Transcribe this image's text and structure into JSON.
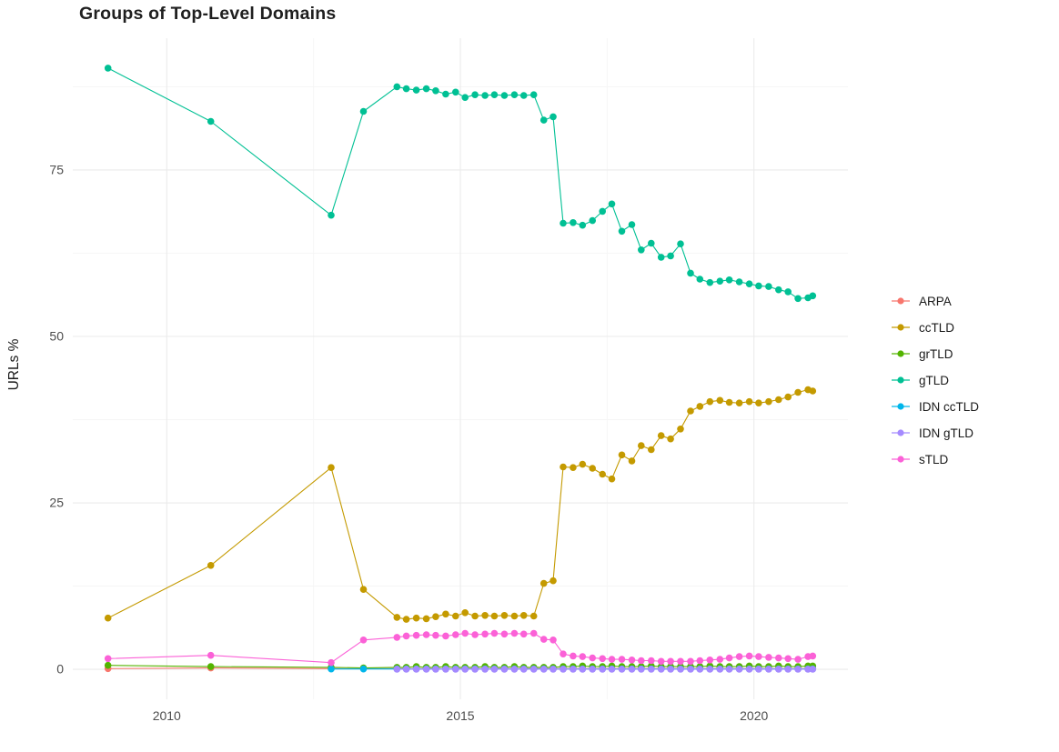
{
  "chart_data": {
    "type": "line",
    "title": "Groups of Top-Level Domains",
    "xlabel": "",
    "ylabel": "URLs %",
    "xlim": [
      2008.4,
      2021.6
    ],
    "ylim": [
      -4.5,
      94.8
    ],
    "xticks": [
      2010,
      2015,
      2020
    ],
    "yticks": [
      0,
      25,
      50,
      75
    ],
    "xticks_minor": [
      2012.5,
      2017.5
    ],
    "yticks_minor": [
      12.5,
      37.5,
      62.5,
      87.5
    ],
    "grid": true,
    "legend_position": "right",
    "style": {
      "background": "#ffffff",
      "grid_major": "#ebebeb",
      "grid_minor": "#f6f6f6",
      "axis_text": "#4d4d4d",
      "title_color": "#1f1f1f",
      "point_radius": 3.8,
      "line_width": 1.1
    },
    "series": [
      {
        "name": "ARPA",
        "color": "#F8766D",
        "x": [
          2009.0,
          2010.75,
          2012.8,
          2013.35,
          2013.92,
          2014.08,
          2014.25,
          2014.42,
          2014.58,
          2014.75,
          2014.92,
          2015.08,
          2015.25,
          2015.42,
          2015.58,
          2015.75,
          2015.92,
          2016.08,
          2016.25,
          2016.42,
          2016.58,
          2016.75,
          2016.92,
          2017.08,
          2017.25,
          2017.42,
          2017.58,
          2017.75,
          2017.92,
          2018.08,
          2018.25,
          2018.42,
          2018.58,
          2018.75,
          2018.92,
          2019.08,
          2019.25,
          2019.42,
          2019.58,
          2019.75,
          2019.92,
          2020.08,
          2020.25,
          2020.42,
          2020.58,
          2020.75,
          2020.92,
          2021.0
        ],
        "y": [
          0.1,
          0.2,
          0.1,
          0.1,
          0.1,
          0.1,
          0.1,
          0.1,
          0.1,
          0.1,
          0.1,
          0.1,
          0.1,
          0.1,
          0.1,
          0.1,
          0.1,
          0.1,
          0.1,
          0.1,
          0.1,
          0.1,
          0.1,
          0.1,
          0.1,
          0.1,
          0.1,
          0.1,
          0.1,
          0.1,
          0.1,
          0.1,
          0.1,
          0.1,
          0.1,
          0.1,
          0.1,
          0.1,
          0.1,
          0.1,
          0.1,
          0.1,
          0.1,
          0.1,
          0.1,
          0.1,
          0.1,
          0.1
        ]
      },
      {
        "name": "ccTLD",
        "color": "#C49A00",
        "x": [
          2009.0,
          2010.75,
          2012.8,
          2013.35,
          2013.92,
          2014.08,
          2014.25,
          2014.42,
          2014.58,
          2014.75,
          2014.92,
          2015.08,
          2015.25,
          2015.42,
          2015.58,
          2015.75,
          2015.92,
          2016.08,
          2016.25,
          2016.42,
          2016.58,
          2016.75,
          2016.92,
          2017.08,
          2017.25,
          2017.42,
          2017.58,
          2017.75,
          2017.92,
          2018.08,
          2018.25,
          2018.42,
          2018.58,
          2018.75,
          2018.92,
          2019.08,
          2019.25,
          2019.42,
          2019.58,
          2019.75,
          2019.92,
          2020.08,
          2020.25,
          2020.42,
          2020.58,
          2020.75,
          2020.92,
          2021.0
        ],
        "y": [
          7.7,
          15.6,
          30.3,
          12.0,
          7.8,
          7.5,
          7.7,
          7.6,
          7.9,
          8.3,
          8.0,
          8.5,
          8.0,
          8.1,
          8.0,
          8.1,
          8.0,
          8.1,
          8.0,
          12.9,
          13.3,
          30.4,
          30.3,
          30.8,
          30.2,
          29.3,
          28.6,
          32.2,
          31.3,
          33.6,
          33.0,
          35.1,
          34.6,
          36.1,
          38.8,
          39.5,
          40.2,
          40.4,
          40.1,
          40.0,
          40.2,
          40.0,
          40.2,
          40.5,
          40.9,
          41.6,
          42.0,
          41.8
        ]
      },
      {
        "name": "grTLD",
        "color": "#53B400",
        "x": [
          2009.0,
          2010.75,
          2012.8,
          2013.35,
          2013.92,
          2014.08,
          2014.25,
          2014.42,
          2014.58,
          2014.75,
          2014.92,
          2015.08,
          2015.25,
          2015.42,
          2015.58,
          2015.75,
          2015.92,
          2016.08,
          2016.25,
          2016.42,
          2016.58,
          2016.75,
          2016.92,
          2017.08,
          2017.25,
          2017.42,
          2017.58,
          2017.75,
          2017.92,
          2018.08,
          2018.25,
          2018.42,
          2018.58,
          2018.75,
          2018.92,
          2019.08,
          2019.25,
          2019.42,
          2019.58,
          2019.75,
          2019.92,
          2020.08,
          2020.25,
          2020.42,
          2020.58,
          2020.75,
          2020.92,
          2021.0
        ],
        "y": [
          0.6,
          0.4,
          0.3,
          0.2,
          0.3,
          0.3,
          0.4,
          0.3,
          0.3,
          0.4,
          0.3,
          0.3,
          0.3,
          0.4,
          0.3,
          0.3,
          0.4,
          0.3,
          0.3,
          0.3,
          0.3,
          0.4,
          0.4,
          0.5,
          0.4,
          0.4,
          0.5,
          0.4,
          0.4,
          0.4,
          0.5,
          0.4,
          0.4,
          0.4,
          0.4,
          0.4,
          0.5,
          0.4,
          0.4,
          0.4,
          0.5,
          0.4,
          0.4,
          0.5,
          0.4,
          0.4,
          0.5,
          0.5
        ]
      },
      {
        "name": "gTLD",
        "color": "#00C094",
        "x": [
          2009.0,
          2010.75,
          2012.8,
          2013.35,
          2013.92,
          2014.08,
          2014.25,
          2014.42,
          2014.58,
          2014.75,
          2014.92,
          2015.08,
          2015.25,
          2015.42,
          2015.58,
          2015.75,
          2015.92,
          2016.08,
          2016.25,
          2016.42,
          2016.58,
          2016.75,
          2016.92,
          2017.08,
          2017.25,
          2017.42,
          2017.58,
          2017.75,
          2017.92,
          2018.08,
          2018.25,
          2018.42,
          2018.58,
          2018.75,
          2018.92,
          2019.08,
          2019.25,
          2019.42,
          2019.58,
          2019.75,
          2019.92,
          2020.08,
          2020.25,
          2020.42,
          2020.58,
          2020.75,
          2020.92,
          2021.0
        ],
        "y": [
          90.3,
          82.3,
          68.2,
          83.8,
          87.5,
          87.2,
          87.0,
          87.2,
          86.9,
          86.4,
          86.7,
          85.9,
          86.3,
          86.2,
          86.3,
          86.2,
          86.3,
          86.2,
          86.3,
          82.5,
          83.0,
          67.0,
          67.1,
          66.7,
          67.4,
          68.8,
          69.9,
          65.8,
          66.8,
          63.0,
          64.0,
          61.9,
          62.1,
          63.9,
          59.5,
          58.6,
          58.1,
          58.3,
          58.5,
          58.2,
          57.9,
          57.6,
          57.5,
          57.0,
          56.7,
          55.7,
          55.8,
          56.1
        ]
      },
      {
        "name": "IDN ccTLD",
        "color": "#00B6EB",
        "x": [
          2012.8,
          2013.35,
          2013.92,
          2014.08,
          2014.25,
          2014.42,
          2014.58,
          2014.75,
          2014.92,
          2015.08,
          2015.25,
          2015.42,
          2015.58,
          2015.75,
          2015.92,
          2016.08,
          2016.25,
          2016.42,
          2016.58,
          2016.75,
          2016.92,
          2017.08,
          2017.25,
          2017.42,
          2017.58,
          2017.75,
          2017.92,
          2018.08,
          2018.25,
          2018.42,
          2018.58,
          2018.75,
          2018.92,
          2019.08,
          2019.25,
          2019.42,
          2019.58,
          2019.75,
          2019.92,
          2020.08,
          2020.25,
          2020.42,
          2020.58,
          2020.75,
          2020.92,
          2021.0
        ],
        "y": [
          0.05,
          0.05,
          0.05,
          0.05,
          0.05,
          0.05,
          0.05,
          0.05,
          0.05,
          0.05,
          0.05,
          0.05,
          0.05,
          0.05,
          0.05,
          0.05,
          0.05,
          0.05,
          0.05,
          0.05,
          0.05,
          0.05,
          0.05,
          0.05,
          0.05,
          0.05,
          0.05,
          0.05,
          0.05,
          0.05,
          0.05,
          0.05,
          0.05,
          0.05,
          0.05,
          0.05,
          0.05,
          0.05,
          0.05,
          0.05,
          0.05,
          0.05,
          0.05,
          0.05,
          0.05,
          0.05
        ]
      },
      {
        "name": "IDN gTLD",
        "color": "#A58AFF",
        "x": [
          2013.92,
          2014.08,
          2014.25,
          2014.42,
          2014.58,
          2014.75,
          2014.92,
          2015.08,
          2015.25,
          2015.42,
          2015.58,
          2015.75,
          2015.92,
          2016.08,
          2016.25,
          2016.42,
          2016.58,
          2016.75,
          2016.92,
          2017.08,
          2017.25,
          2017.42,
          2017.58,
          2017.75,
          2017.92,
          2018.08,
          2018.25,
          2018.42,
          2018.58,
          2018.75,
          2018.92,
          2019.08,
          2019.25,
          2019.42,
          2019.58,
          2019.75,
          2019.92,
          2020.08,
          2020.25,
          2020.42,
          2020.58,
          2020.75,
          2020.92,
          2021.0
        ],
        "y": [
          0.02,
          0.02,
          0.02,
          0.02,
          0.02,
          0.02,
          0.02,
          0.02,
          0.02,
          0.02,
          0.02,
          0.02,
          0.02,
          0.02,
          0.02,
          0.02,
          0.02,
          0.02,
          0.02,
          0.02,
          0.02,
          0.02,
          0.02,
          0.02,
          0.02,
          0.02,
          0.02,
          0.02,
          0.02,
          0.02,
          0.02,
          0.02,
          0.02,
          0.02,
          0.02,
          0.02,
          0.02,
          0.02,
          0.02,
          0.02,
          0.02,
          0.02,
          0.02,
          0.02
        ]
      },
      {
        "name": "sTLD",
        "color": "#FB61D7",
        "x": [
          2009.0,
          2010.75,
          2012.8,
          2013.35,
          2013.92,
          2014.08,
          2014.25,
          2014.42,
          2014.58,
          2014.75,
          2014.92,
          2015.08,
          2015.25,
          2015.42,
          2015.58,
          2015.75,
          2015.92,
          2016.08,
          2016.25,
          2016.42,
          2016.58,
          2016.75,
          2016.92,
          2017.08,
          2017.25,
          2017.42,
          2017.58,
          2017.75,
          2017.92,
          2018.08,
          2018.25,
          2018.42,
          2018.58,
          2018.75,
          2018.92,
          2019.08,
          2019.25,
          2019.42,
          2019.58,
          2019.75,
          2019.92,
          2020.08,
          2020.25,
          2020.42,
          2020.58,
          2020.75,
          2020.92,
          2021.0
        ],
        "y": [
          1.6,
          2.1,
          1.0,
          4.4,
          4.8,
          5.0,
          5.1,
          5.2,
          5.1,
          5.0,
          5.2,
          5.4,
          5.2,
          5.3,
          5.4,
          5.3,
          5.4,
          5.3,
          5.4,
          4.5,
          4.4,
          2.3,
          2.0,
          1.9,
          1.7,
          1.6,
          1.5,
          1.5,
          1.4,
          1.3,
          1.3,
          1.2,
          1.2,
          1.2,
          1.2,
          1.3,
          1.4,
          1.5,
          1.7,
          1.9,
          2.0,
          1.9,
          1.8,
          1.7,
          1.6,
          1.5,
          1.9,
          2.0
        ]
      }
    ]
  }
}
